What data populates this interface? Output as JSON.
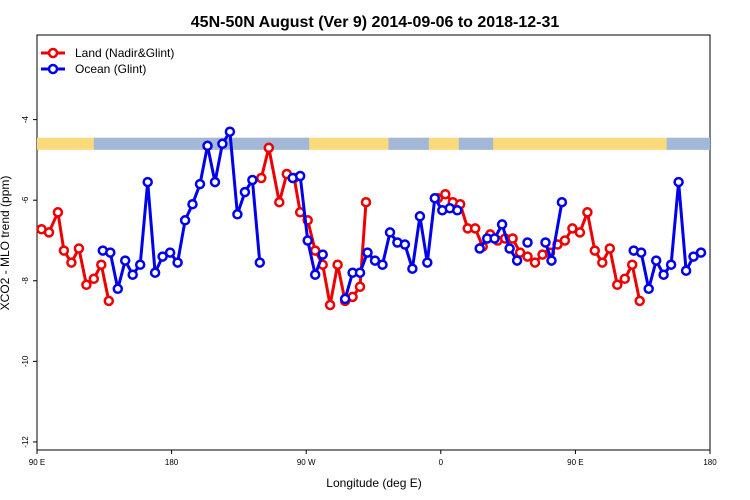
{
  "chart_data": {
    "type": "line",
    "title": "45N-50N August (Ver 9)   2014-09-06 to 2018-12-31",
    "xlabel": "Longitude (deg E)",
    "ylabel": "XCO2 - MLO trend (ppm)",
    "xlim": [
      90,
      540
    ],
    "ylim": [
      -12.2,
      -1.9
    ],
    "x_ticks": [
      {
        "value": 90,
        "label": "90 E"
      },
      {
        "value": 180,
        "label": "180"
      },
      {
        "value": 270,
        "label": "90 W"
      },
      {
        "value": 360,
        "label": "0"
      },
      {
        "value": 450,
        "label": "90 E"
      },
      {
        "value": 540,
        "label": "180"
      }
    ],
    "y_ticks": [
      {
        "value": -4,
        "label": "-4"
      },
      {
        "value": -6,
        "label": "-6"
      },
      {
        "value": -8,
        "label": "-8"
      },
      {
        "value": -10,
        "label": "-10"
      },
      {
        "value": -12,
        "label": "-12"
      }
    ],
    "legend_position": "top-left",
    "land_ocean_band": {
      "y_range": [
        -4.75,
        -4.45
      ],
      "land_color": "#FADA7A",
      "ocean_color": "#A3B8D8"
    },
    "series": [
      {
        "name": "Land (Nadir&Glint)",
        "color": "#EE0000",
        "segments": [
          [
            [
              93,
              -6.72
            ],
            [
              98,
              -6.8
            ],
            [
              104,
              -6.3
            ],
            [
              108,
              -7.25
            ],
            [
              113,
              -7.55
            ],
            [
              118,
              -7.2
            ],
            [
              123,
              -8.1
            ],
            [
              128,
              -7.95
            ],
            [
              133,
              -7.6
            ],
            [
              138,
              -8.5
            ]
          ],
          [
            [
              240,
              -5.45
            ],
            [
              245,
              -4.7
            ],
            [
              252,
              -6.05
            ],
            [
              257,
              -5.35
            ],
            [
              262,
              -5.45
            ],
            [
              266,
              -6.3
            ],
            [
              271,
              -6.5
            ],
            [
              276,
              -7.25
            ],
            [
              281,
              -7.6
            ],
            [
              286,
              -8.6
            ],
            [
              291,
              -7.6
            ],
            [
              296,
              -8.5
            ],
            [
              301,
              -8.4
            ],
            [
              306,
              -8.15
            ],
            [
              310,
              -6.05
            ]
          ],
          [
            [
              358,
              -5.95
            ],
            [
              363,
              -5.85
            ],
            [
              368,
              -6.05
            ],
            [
              373,
              -6.1
            ],
            [
              378,
              -6.7
            ],
            [
              383,
              -6.7
            ],
            [
              388,
              -7.15
            ],
            [
              393,
              -6.85
            ],
            [
              398,
              -7.0
            ],
            [
              403,
              -6.95
            ],
            [
              408,
              -6.95
            ],
            [
              413,
              -7.3
            ],
            [
              418,
              -7.4
            ],
            [
              423,
              -7.55
            ],
            [
              428,
              -7.35
            ],
            [
              433,
              -7.3
            ],
            [
              438,
              -7.1
            ],
            [
              443,
              -7.0
            ],
            [
              448,
              -6.7
            ],
            [
              453,
              -6.8
            ],
            [
              458,
              -6.3
            ],
            [
              463,
              -7.25
            ],
            [
              468,
              -7.55
            ],
            [
              473,
              -7.2
            ],
            [
              478,
              -8.1
            ],
            [
              483,
              -7.95
            ],
            [
              488,
              -7.6
            ],
            [
              493,
              -8.5
            ]
          ]
        ]
      },
      {
        "name": "Ocean (Glint)",
        "color": "#0000EE",
        "segments": [
          [
            [
              134,
              -7.25
            ],
            [
              139,
              -7.3
            ],
            [
              144,
              -8.2
            ],
            [
              149,
              -7.5
            ],
            [
              154,
              -7.85
            ],
            [
              159,
              -7.6
            ],
            [
              164,
              -5.55
            ],
            [
              169,
              -7.8
            ],
            [
              174,
              -7.4
            ],
            [
              179,
              -7.3
            ],
            [
              184,
              -7.55
            ],
            [
              189,
              -6.5
            ],
            [
              194,
              -6.1
            ],
            [
              199,
              -5.6
            ],
            [
              204,
              -4.65
            ],
            [
              209,
              -5.55
            ],
            [
              214,
              -4.6
            ],
            [
              219,
              -4.3
            ],
            [
              224,
              -6.35
            ],
            [
              229,
              -5.8
            ],
            [
              234,
              -5.5
            ],
            [
              239,
              -7.55
            ]
          ],
          [
            [
              261,
              -5.45
            ],
            [
              266,
              -5.4
            ],
            [
              271,
              -7.0
            ],
            [
              276,
              -7.85
            ],
            [
              281,
              -7.35
            ]
          ],
          [
            [
              296,
              -8.45
            ],
            [
              301,
              -7.8
            ],
            [
              306,
              -7.8
            ],
            [
              311,
              -7.3
            ],
            [
              316,
              -7.5
            ],
            [
              321,
              -7.6
            ],
            [
              326,
              -6.8
            ],
            [
              331,
              -7.05
            ],
            [
              336,
              -7.1
            ],
            [
              341,
              -7.7
            ],
            [
              346,
              -6.4
            ],
            [
              351,
              -7.55
            ],
            [
              356,
              -5.95
            ],
            [
              361,
              -6.25
            ]
          ],
          [
            [
              366,
              -6.2
            ],
            [
              371,
              -6.25
            ]
          ],
          [
            [
              386,
              -7.2
            ],
            [
              391,
              -6.95
            ],
            [
              396,
              -6.95
            ],
            [
              401,
              -6.6
            ],
            [
              406,
              -7.2
            ],
            [
              411,
              -7.5
            ]
          ],
          [
            [
              418,
              -7.05
            ]
          ],
          [
            [
              430,
              -7.05
            ],
            [
              434,
              -7.5
            ],
            [
              441,
              -6.05
            ]
          ],
          [
            [
              489,
              -7.25
            ],
            [
              494,
              -7.3
            ],
            [
              499,
              -8.2
            ],
            [
              504,
              -7.5
            ],
            [
              509,
              -7.85
            ],
            [
              514,
              -7.6
            ],
            [
              519,
              -5.55
            ],
            [
              524,
              -7.75
            ],
            [
              529,
              -7.4
            ],
            [
              534,
              -7.3
            ]
          ]
        ]
      }
    ]
  }
}
